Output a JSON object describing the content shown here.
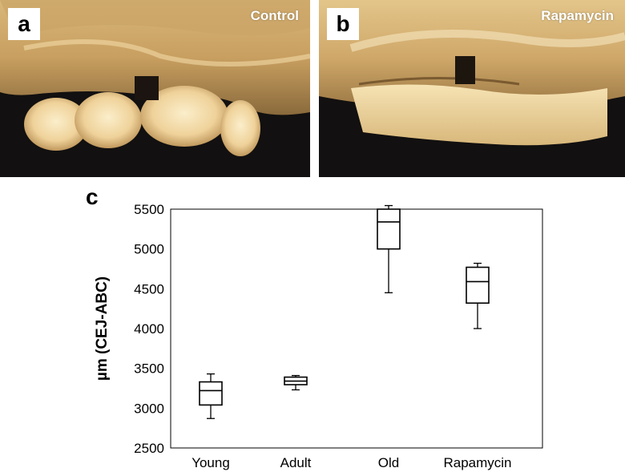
{
  "panels": {
    "a": {
      "letter": "a",
      "caption": "Control"
    },
    "b": {
      "letter": "b",
      "caption": "Rapamycin"
    },
    "c": {
      "letter": "c"
    }
  },
  "colors": {
    "tooth_light": "#f3deaa",
    "tooth_mid": "#d8b77a",
    "tooth_dark": "#8a6a3c",
    "background_photo": "#121010",
    "box_stroke": "#000000"
  },
  "chart_data": {
    "type": "box",
    "title": "",
    "xlabel": "",
    "ylabel": "µm (CEJ-ABC)",
    "ylim": [
      2500,
      5500
    ],
    "yticks": [
      2500,
      3000,
      3500,
      4000,
      4500,
      5000,
      5500
    ],
    "grid": false,
    "categories": [
      "Young",
      "Adult",
      "Old",
      "Rapamycin"
    ],
    "boxes": [
      {
        "category": "Young",
        "whisker_low": 2870,
        "q1": 3040,
        "median": 3220,
        "q3": 3330,
        "whisker_high": 3430
      },
      {
        "category": "Adult",
        "whisker_low": 3230,
        "q1": 3295,
        "median": 3340,
        "q3": 3390,
        "whisker_high": 3410
      },
      {
        "category": "Old",
        "whisker_low": 4450,
        "q1": 5000,
        "median": 5340,
        "q3": 5500,
        "whisker_high": 5545
      },
      {
        "category": "Rapamycin",
        "whisker_low": 4000,
        "q1": 4320,
        "median": 4590,
        "q3": 4770,
        "whisker_high": 4820
      }
    ]
  }
}
